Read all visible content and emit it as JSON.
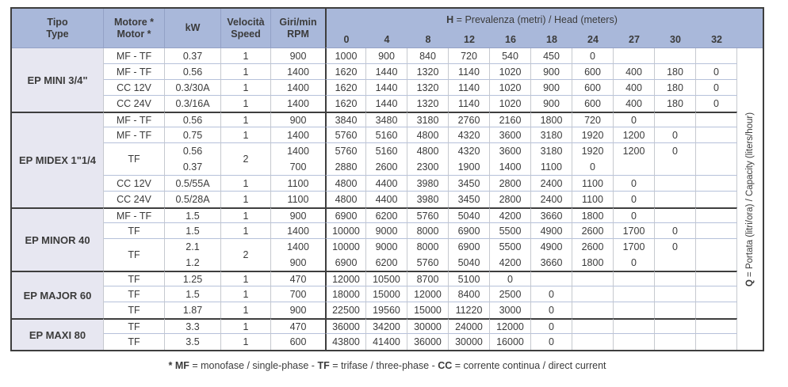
{
  "colors": {
    "header_bg": "#a9b8da",
    "label_bg": "#e7e7f1",
    "dark": "#3e3e3e",
    "hline": "#b6c1da",
    "vline": "#c6c9cf",
    "header_line": "#93a1c6",
    "text": "#3b3b3b"
  },
  "header": {
    "left_columns": [
      {
        "key": "tipo",
        "lines": [
          "Tipo",
          "Type"
        ]
      },
      {
        "key": "motore",
        "lines": [
          "Motore *",
          "Motor *"
        ]
      },
      {
        "key": "kw",
        "lines": [
          "kW"
        ]
      },
      {
        "key": "velocita",
        "lines": [
          "Velocità",
          "Speed"
        ]
      },
      {
        "key": "giri",
        "lines": [
          "Giri/min",
          "RPM"
        ]
      }
    ],
    "head_group": [
      {
        "text": "H",
        "bold": true
      },
      {
        "text": " = Prevalenza (metri) / Head (meters)",
        "bold": false
      }
    ],
    "head_values": [
      "0",
      "4",
      "8",
      "12",
      "16",
      "18",
      "24",
      "27",
      "30",
      "32"
    ]
  },
  "sections": [
    {
      "name": "EP MINI 3/4\"",
      "rows": [
        {
          "motor": "MF - TF",
          "kw": [
            "0.37"
          ],
          "speed": "1",
          "rpm": [
            "900"
          ],
          "data": [
            [
              "1000"
            ],
            [
              "900"
            ],
            [
              "840"
            ],
            [
              "720"
            ],
            [
              "540"
            ],
            [
              "450"
            ],
            [
              "0"
            ],
            [
              ""
            ],
            [
              ""
            ],
            [
              ""
            ]
          ]
        },
        {
          "motor": "MF - TF",
          "kw": [
            "0.56"
          ],
          "speed": "1",
          "rpm": [
            "1400"
          ],
          "data": [
            [
              "1620"
            ],
            [
              "1440"
            ],
            [
              "1320"
            ],
            [
              "1140"
            ],
            [
              "1020"
            ],
            [
              "900"
            ],
            [
              "600"
            ],
            [
              "400"
            ],
            [
              "180"
            ],
            [
              "0"
            ]
          ]
        },
        {
          "motor": "CC 12V",
          "kw": [
            "0.3/30A"
          ],
          "speed": "1",
          "rpm": [
            "1400"
          ],
          "data": [
            [
              "1620"
            ],
            [
              "1440"
            ],
            [
              "1320"
            ],
            [
              "1140"
            ],
            [
              "1020"
            ],
            [
              "900"
            ],
            [
              "600"
            ],
            [
              "400"
            ],
            [
              "180"
            ],
            [
              "0"
            ]
          ]
        },
        {
          "motor": "CC 24V",
          "kw": [
            "0.3/16A"
          ],
          "speed": "1",
          "rpm": [
            "1400"
          ],
          "data": [
            [
              "1620"
            ],
            [
              "1440"
            ],
            [
              "1320"
            ],
            [
              "1140"
            ],
            [
              "1020"
            ],
            [
              "900"
            ],
            [
              "600"
            ],
            [
              "400"
            ],
            [
              "180"
            ],
            [
              "0"
            ]
          ]
        }
      ]
    },
    {
      "name": "EP MIDEX 1\"1/4",
      "rows": [
        {
          "motor": "MF - TF",
          "kw": [
            "0.56"
          ],
          "speed": "1",
          "rpm": [
            "900"
          ],
          "data": [
            [
              "3840"
            ],
            [
              "3480"
            ],
            [
              "3180"
            ],
            [
              "2760"
            ],
            [
              "2160"
            ],
            [
              "1800"
            ],
            [
              "720"
            ],
            [
              "0"
            ],
            [
              ""
            ],
            [
              ""
            ]
          ]
        },
        {
          "motor": "MF - TF",
          "kw": [
            "0.75"
          ],
          "speed": "1",
          "rpm": [
            "1400"
          ],
          "data": [
            [
              "5760"
            ],
            [
              "5160"
            ],
            [
              "4800"
            ],
            [
              "4320"
            ],
            [
              "3600"
            ],
            [
              "3180"
            ],
            [
              "1920"
            ],
            [
              "1200"
            ],
            [
              "0"
            ],
            [
              ""
            ]
          ]
        },
        {
          "motor": "TF",
          "kw": [
            "0.56",
            "0.37"
          ],
          "speed": "2",
          "rpm": [
            "1400",
            "700"
          ],
          "data": [
            [
              "5760",
              "2880"
            ],
            [
              "5160",
              "2600"
            ],
            [
              "4800",
              "2300"
            ],
            [
              "4320",
              "1900"
            ],
            [
              "3600",
              "1400"
            ],
            [
              "3180",
              "1100"
            ],
            [
              "1920",
              "0"
            ],
            [
              "1200",
              ""
            ],
            [
              "0",
              ""
            ],
            [
              "",
              ""
            ]
          ]
        },
        {
          "motor": "CC 12V",
          "kw": [
            "0.5/55A"
          ],
          "speed": "1",
          "rpm": [
            "1100"
          ],
          "data": [
            [
              "4800"
            ],
            [
              "4400"
            ],
            [
              "3980"
            ],
            [
              "3450"
            ],
            [
              "2800"
            ],
            [
              "2400"
            ],
            [
              "1100"
            ],
            [
              "0"
            ],
            [
              ""
            ],
            [
              ""
            ]
          ]
        },
        {
          "motor": "CC 24V",
          "kw": [
            "0.5/28A"
          ],
          "speed": "1",
          "rpm": [
            "1100"
          ],
          "data": [
            [
              "4800"
            ],
            [
              "4400"
            ],
            [
              "3980"
            ],
            [
              "3450"
            ],
            [
              "2800"
            ],
            [
              "2400"
            ],
            [
              "1100"
            ],
            [
              "0"
            ],
            [
              ""
            ],
            [
              ""
            ]
          ]
        }
      ]
    },
    {
      "name": "EP MINOR 40",
      "rows": [
        {
          "motor": "MF - TF",
          "kw": [
            "1.5"
          ],
          "speed": "1",
          "rpm": [
            "900"
          ],
          "data": [
            [
              "6900"
            ],
            [
              "6200"
            ],
            [
              "5760"
            ],
            [
              "5040"
            ],
            [
              "4200"
            ],
            [
              "3660"
            ],
            [
              "1800"
            ],
            [
              "0"
            ],
            [
              ""
            ],
            [
              ""
            ]
          ]
        },
        {
          "motor": "TF",
          "kw": [
            "1.5"
          ],
          "speed": "1",
          "rpm": [
            "1400"
          ],
          "data": [
            [
              "10000"
            ],
            [
              "9000"
            ],
            [
              "8000"
            ],
            [
              "6900"
            ],
            [
              "5500"
            ],
            [
              "4900"
            ],
            [
              "2600"
            ],
            [
              "1700"
            ],
            [
              "0"
            ],
            [
              ""
            ]
          ]
        },
        {
          "motor": "TF",
          "kw": [
            "2.1",
            "1.2"
          ],
          "speed": "2",
          "rpm": [
            "1400",
            "900"
          ],
          "data": [
            [
              "10000",
              "6900"
            ],
            [
              "9000",
              "6200"
            ],
            [
              "8000",
              "5760"
            ],
            [
              "6900",
              "5040"
            ],
            [
              "5500",
              "4200"
            ],
            [
              "4900",
              "3660"
            ],
            [
              "2600",
              "1800"
            ],
            [
              "1700",
              "0"
            ],
            [
              "0",
              ""
            ],
            [
              "",
              ""
            ]
          ]
        }
      ]
    },
    {
      "name": "EP MAJOR 60",
      "rows": [
        {
          "motor": "TF",
          "kw": [
            "1.25"
          ],
          "speed": "1",
          "rpm": [
            "470"
          ],
          "data": [
            [
              "12000"
            ],
            [
              "10500"
            ],
            [
              "8700"
            ],
            [
              "5100"
            ],
            [
              "0"
            ],
            [
              ""
            ],
            [
              ""
            ],
            [
              ""
            ],
            [
              ""
            ],
            [
              ""
            ]
          ]
        },
        {
          "motor": "TF",
          "kw": [
            "1.5"
          ],
          "speed": "1",
          "rpm": [
            "700"
          ],
          "data": [
            [
              "18000"
            ],
            [
              "15000"
            ],
            [
              "12000"
            ],
            [
              "8400"
            ],
            [
              "2500"
            ],
            [
              "0"
            ],
            [
              ""
            ],
            [
              ""
            ],
            [
              ""
            ],
            [
              ""
            ]
          ]
        },
        {
          "motor": "TF",
          "kw": [
            "1.87"
          ],
          "speed": "1",
          "rpm": [
            "900"
          ],
          "data": [
            [
              "22500"
            ],
            [
              "19560"
            ],
            [
              "15000"
            ],
            [
              "11220"
            ],
            [
              "3000"
            ],
            [
              "0"
            ],
            [
              ""
            ],
            [
              ""
            ],
            [
              ""
            ],
            [
              ""
            ]
          ]
        }
      ]
    },
    {
      "name": "EP MAXI 80",
      "rows": [
        {
          "motor": "TF",
          "kw": [
            "3.3"
          ],
          "speed": "1",
          "rpm": [
            "470"
          ],
          "data": [
            [
              "36000"
            ],
            [
              "34200"
            ],
            [
              "30000"
            ],
            [
              "24000"
            ],
            [
              "12000"
            ],
            [
              "0"
            ],
            [
              ""
            ],
            [
              ""
            ],
            [
              ""
            ],
            [
              ""
            ]
          ]
        },
        {
          "motor": "TF",
          "kw": [
            "3.5"
          ],
          "speed": "1",
          "rpm": [
            "600"
          ],
          "data": [
            [
              "43800"
            ],
            [
              "41400"
            ],
            [
              "36000"
            ],
            [
              "30000"
            ],
            [
              "16000"
            ],
            [
              "0"
            ],
            [
              ""
            ],
            [
              ""
            ],
            [
              ""
            ],
            [
              ""
            ]
          ]
        }
      ]
    }
  ],
  "side_label": [
    {
      "text": "Q",
      "bold": true
    },
    {
      "text": " = Portata (litri/ora) / Capacity (liters/hour)",
      "bold": false
    }
  ],
  "footnote": [
    {
      "text": "* MF",
      "bold": true
    },
    {
      "text": " = monofase / single-phase - ",
      "bold": false
    },
    {
      "text": "TF",
      "bold": true
    },
    {
      "text": " = trifase / three-phase - ",
      "bold": false
    },
    {
      "text": "CC",
      "bold": true
    },
    {
      "text": " = corrente continua / direct current",
      "bold": false
    }
  ]
}
